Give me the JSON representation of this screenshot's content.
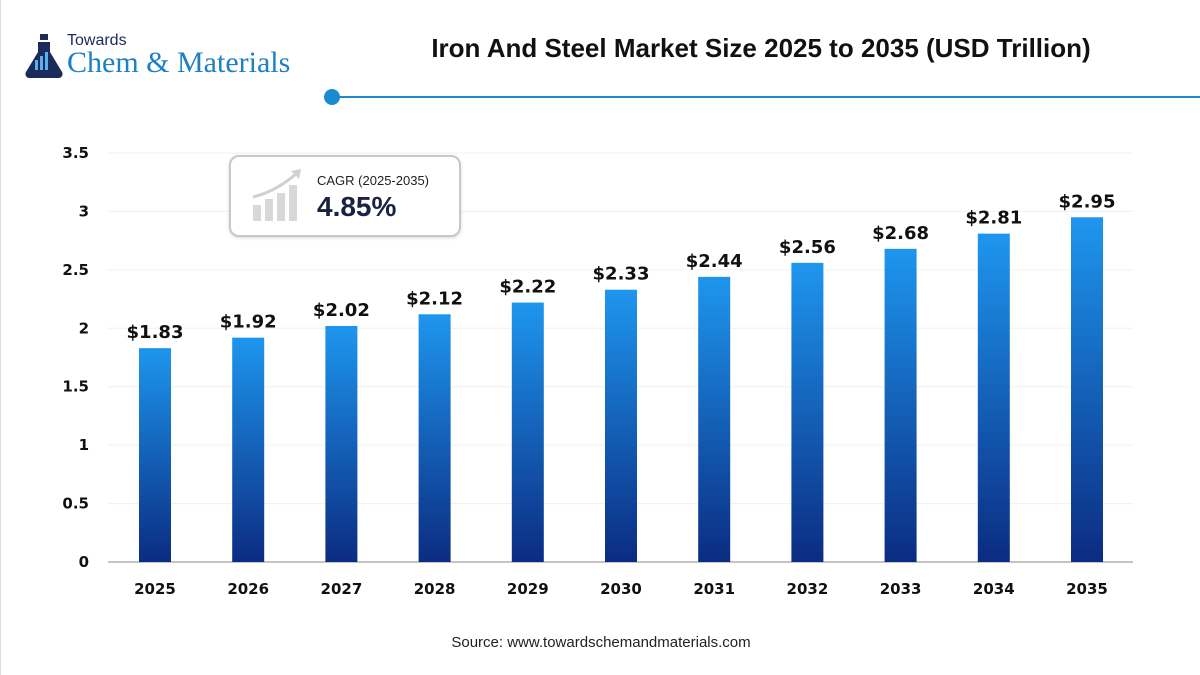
{
  "logo": {
    "top": "Towards",
    "main": "Chem & Materials"
  },
  "header": {
    "title": "Iron And Steel Market Size 2025 to 2035 (USD Trillion)"
  },
  "cagr": {
    "label": "CAGR (2025-2035)",
    "value": "4.85%",
    "icon": "growth-chart-icon"
  },
  "source": "Source: www.towardschemandmaterials.com",
  "colors": {
    "bar_top": "#1e96ee",
    "bar_bottom": "#0b2c82",
    "accent": "#1b8ad1"
  },
  "chart_data": {
    "type": "bar",
    "title": "Iron And Steel Market Size 2025 to 2035 (USD Trillion)",
    "categories": [
      "2025",
      "2026",
      "2027",
      "2028",
      "2029",
      "2030",
      "2031",
      "2032",
      "2033",
      "2034",
      "2035"
    ],
    "values": [
      1.83,
      1.92,
      2.02,
      2.12,
      2.22,
      2.33,
      2.44,
      2.56,
      2.68,
      2.81,
      2.95
    ],
    "data_labels": [
      "$1.83",
      "$1.92",
      "$2.02",
      "$2.12",
      "$2.22",
      "$2.33",
      "$2.44",
      "$2.56",
      "$2.68",
      "$2.81",
      "$2.95"
    ],
    "yticks": [
      "0",
      "0.5",
      "1",
      "1.5",
      "2",
      "2.5",
      "3",
      "3.5"
    ],
    "ylim": [
      0,
      3.5
    ],
    "grid": true,
    "xlabel": "",
    "ylabel": ""
  }
}
